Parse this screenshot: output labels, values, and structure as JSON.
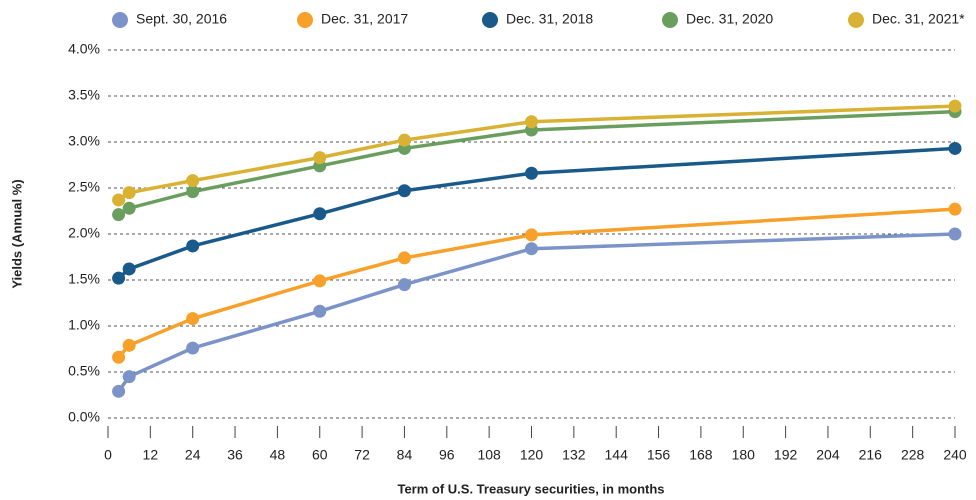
{
  "chart_data": {
    "type": "line",
    "x_label": "Term of U.S. Treasury securities, in months",
    "y_label": "Yields (Annual %)",
    "x": [
      3,
      6,
      24,
      60,
      84,
      120,
      240
    ],
    "series": [
      {
        "name": "Sept. 30, 2016",
        "color": "#7b93c8",
        "values": [
          0.29,
          0.45,
          0.76,
          1.16,
          1.45,
          1.84,
          2.0
        ]
      },
      {
        "name": "Dec. 31, 2017",
        "color": "#f7a02a",
        "values": [
          0.66,
          0.79,
          1.08,
          1.49,
          1.74,
          1.99,
          2.27
        ]
      },
      {
        "name": "Dec. 31, 2018",
        "color": "#1a5a8a",
        "values": [
          1.52,
          1.62,
          1.87,
          2.22,
          2.47,
          2.66,
          2.93
        ]
      },
      {
        "name": "Dec. 31, 2020",
        "color": "#6a9e5e",
        "values": [
          2.21,
          2.28,
          2.46,
          2.74,
          2.93,
          3.13,
          3.33
        ]
      },
      {
        "name": "Dec. 31, 2021*",
        "color": "#d9b234",
        "values": [
          2.37,
          2.45,
          2.58,
          2.83,
          3.02,
          3.22,
          3.39
        ]
      }
    ],
    "xlim": [
      0,
      240
    ],
    "xticks": [
      0,
      12,
      24,
      36,
      48,
      60,
      72,
      84,
      96,
      108,
      120,
      132,
      144,
      156,
      168,
      180,
      192,
      204,
      216,
      228,
      240
    ],
    "ylim": [
      0,
      4
    ],
    "yticks": [
      {
        "value": 0,
        "label": "0.0%"
      },
      {
        "value": 0.5,
        "label": "0.5%"
      },
      {
        "value": 1,
        "label": "1.0%"
      },
      {
        "value": 1.5,
        "label": "1.5%"
      },
      {
        "value": 2,
        "label": "2.0%"
      },
      {
        "value": 2.5,
        "label": "2.5%"
      },
      {
        "value": 3,
        "label": "3.0%"
      },
      {
        "value": 3.5,
        "label": "3.5%"
      },
      {
        "value": 4,
        "label": "4.0%"
      }
    ],
    "grid": true,
    "legend": "top"
  }
}
